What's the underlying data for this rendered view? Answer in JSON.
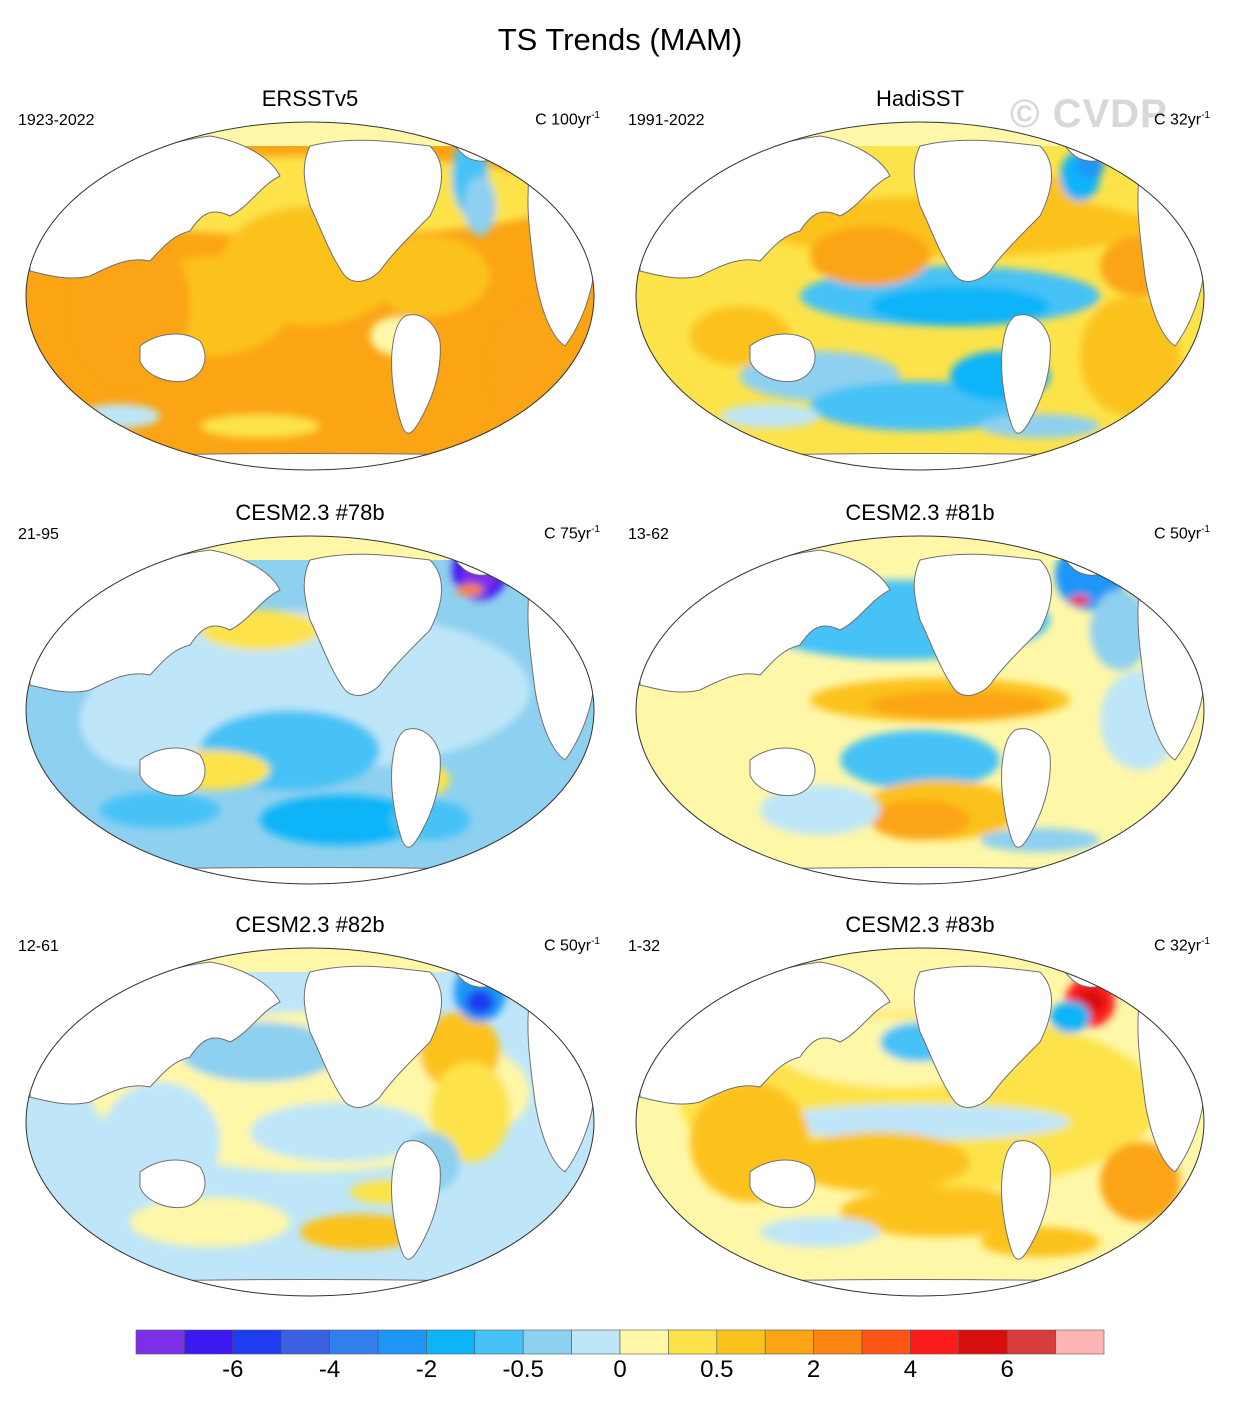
{
  "title": "TS Trends (MAM)",
  "watermark": "© CVDP",
  "units_prefix": "C",
  "units_exponent": "-1",
  "panels": [
    {
      "title": "ERSSTv5",
      "period": "1923-2022",
      "units_span": "100yr",
      "pattern": "warm"
    },
    {
      "title": "HadiSST",
      "period": "1991-2022",
      "units_span": "32yr",
      "pattern": "lanina"
    },
    {
      "title": "CESM2.3 #78b",
      "period": "21-95",
      "units_span": "75yr",
      "pattern": "cool"
    },
    {
      "title": "CESM2.3 #81b",
      "period": "13-62",
      "units_span": "50yr",
      "pattern": "elnino"
    },
    {
      "title": "CESM2.3 #82b",
      "period": "12-61",
      "units_span": "50yr",
      "pattern": "mixed"
    },
    {
      "title": "CESM2.3 #83b",
      "period": "1-32",
      "units_span": "32yr",
      "pattern": "warmmix"
    }
  ],
  "colorbar": {
    "colors": [
      "#7b2fe8",
      "#3b18f0",
      "#1e3cf0",
      "#3a62e0",
      "#3280ee",
      "#1e96f8",
      "#0eb4f8",
      "#46c2f6",
      "#8ed0f0",
      "#bee6f8",
      "#fff7a8",
      "#fde34a",
      "#fcc21c",
      "#fba414",
      "#fc8410",
      "#fd5614",
      "#fc1c1c",
      "#d80e0e",
      "#d83c3c",
      "#ffb4b4"
    ],
    "tick_labels": [
      "-6",
      "-4",
      "-2",
      "-0.5",
      "0",
      "0.5",
      "2",
      "4",
      "6"
    ],
    "tick_boundaries": [
      2,
      4,
      6,
      8,
      10,
      12,
      14,
      16,
      18
    ]
  }
}
